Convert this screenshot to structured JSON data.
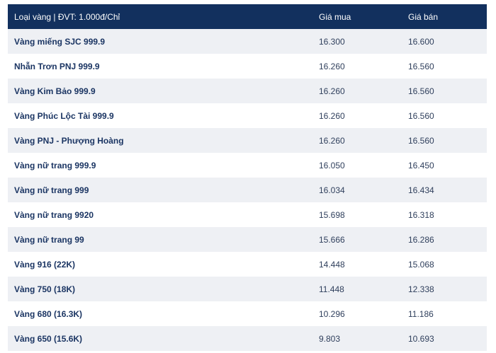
{
  "table": {
    "headers": [
      "Loại vàng | ĐVT: 1.000đ/Chỉ",
      "Giá mua",
      "Giá bán"
    ],
    "rows": [
      {
        "name": "Vàng miếng SJC 999.9",
        "buy": "16.300",
        "sell": "16.600"
      },
      {
        "name": "Nhẫn Trơn PNJ 999.9",
        "buy": "16.260",
        "sell": "16.560"
      },
      {
        "name": "Vàng Kim Bảo 999.9",
        "buy": "16.260",
        "sell": "16.560"
      },
      {
        "name": "Vàng Phúc Lộc Tài 999.9",
        "buy": "16.260",
        "sell": "16.560"
      },
      {
        "name": "Vàng PNJ - Phượng Hoàng",
        "buy": "16.260",
        "sell": "16.560"
      },
      {
        "name": "Vàng nữ trang 999.9",
        "buy": "16.050",
        "sell": "16.450"
      },
      {
        "name": "Vàng nữ trang 999",
        "buy": "16.034",
        "sell": "16.434"
      },
      {
        "name": "Vàng nữ trang 9920",
        "buy": "15.698",
        "sell": "16.318"
      },
      {
        "name": "Vàng nữ trang 99",
        "buy": "15.666",
        "sell": "16.286"
      },
      {
        "name": "Vàng 916 (22K)",
        "buy": "14.448",
        "sell": "15.068"
      },
      {
        "name": "Vàng 750 (18K)",
        "buy": "11.448",
        "sell": "12.338"
      },
      {
        "name": "Vàng 680 (16.3K)",
        "buy": "10.296",
        "sell": "11.186"
      },
      {
        "name": "Vàng 650 (15.6K)",
        "buy": "9.803",
        "sell": "10.693"
      }
    ]
  },
  "colors": {
    "header_bg": "#12305e",
    "row_alt_bg": "#eef0f4",
    "text": "#1b3563"
  }
}
